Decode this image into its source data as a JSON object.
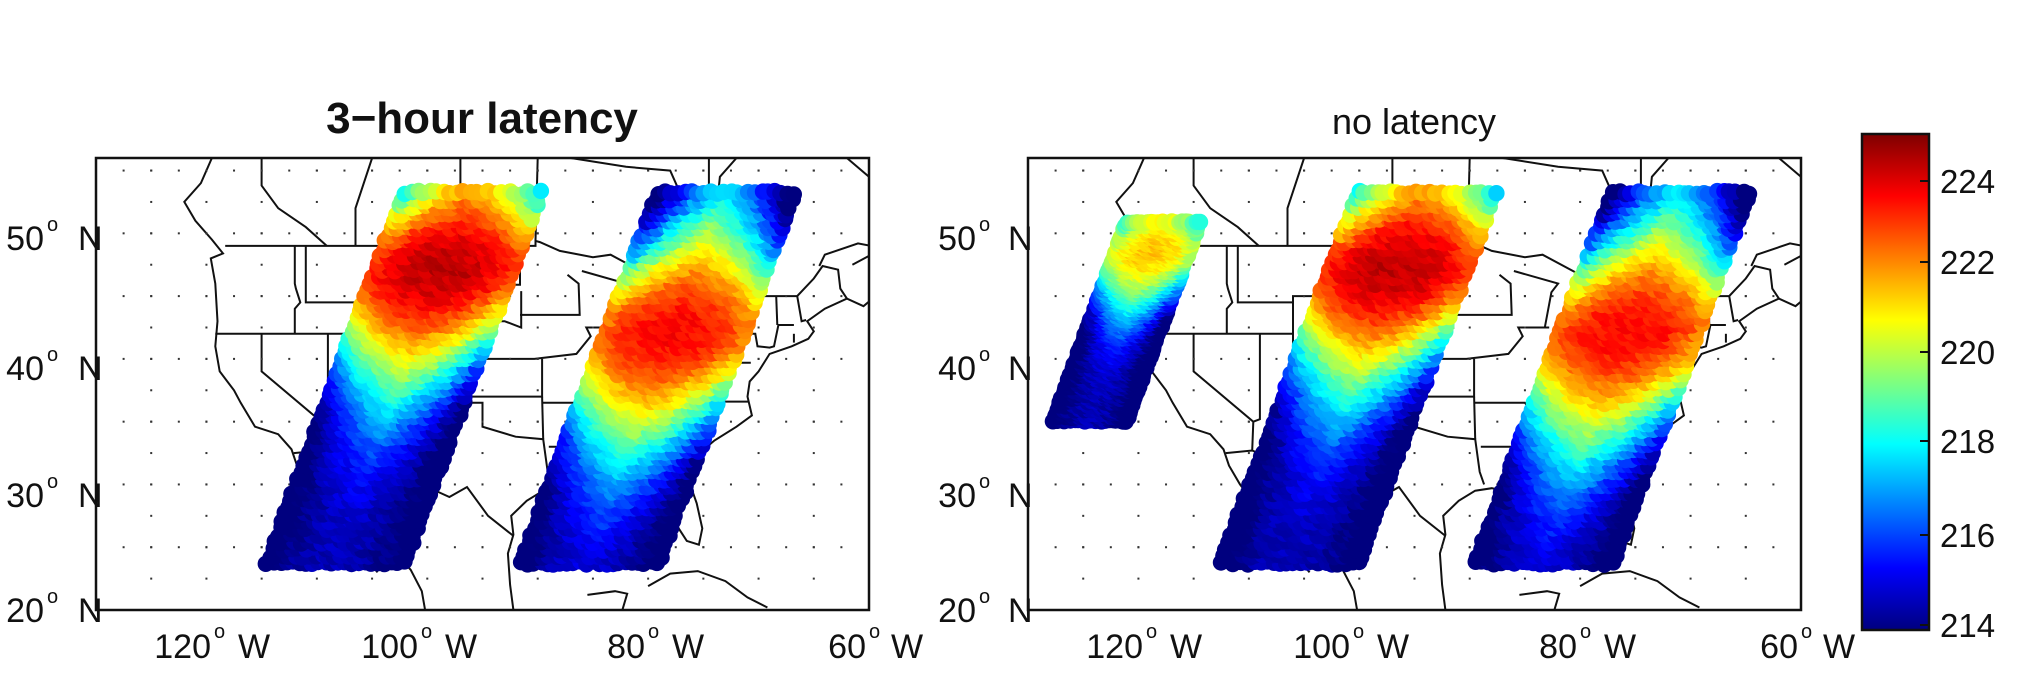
{
  "panels": [
    {
      "title": "3−hour latency",
      "y_ticks": [
        {
          "value": 50,
          "num": "50",
          "hemi": "N"
        },
        {
          "value": 40,
          "num": "40",
          "hemi": "N"
        },
        {
          "value": 30,
          "num": "30",
          "hemi": "N"
        },
        {
          "value": 20,
          "num": "20",
          "hemi": "N"
        }
      ],
      "x_ticks": [
        {
          "value": -120,
          "num": "120",
          "hemi": "W"
        },
        {
          "value": -100,
          "num": "100",
          "hemi": "W"
        },
        {
          "value": -80,
          "num": "80",
          "hemi": "W"
        },
        {
          "value": -60,
          "num": "60",
          "hemi": "W"
        }
      ]
    },
    {
      "title": "no latency",
      "y_ticks": [
        {
          "value": 50,
          "num": "50",
          "hemi": "N"
        },
        {
          "value": 40,
          "num": "40",
          "hemi": "N"
        },
        {
          "value": 30,
          "num": "30",
          "hemi": "N"
        },
        {
          "value": 20,
          "num": "20",
          "hemi": "N"
        }
      ],
      "x_ticks": [
        {
          "value": -120,
          "num": "120",
          "hemi": "W"
        },
        {
          "value": -100,
          "num": "100",
          "hemi": "W"
        },
        {
          "value": -80,
          "num": "80",
          "hemi": "W"
        },
        {
          "value": -60,
          "num": "60",
          "hemi": "W"
        }
      ]
    }
  ],
  "map": {
    "lon_range": [
      -135,
      -65
    ],
    "lat_range": [
      20,
      56
    ],
    "grid": "dotted",
    "grid_spacing_deg": 5,
    "basemap": "coastlines and political borders (US states, Canada, Mexico)"
  },
  "colorbar": {
    "range": [
      214,
      225
    ],
    "ticks": [
      "224",
      "222",
      "220",
      "218",
      "216",
      "214"
    ],
    "colormap": "jet",
    "colors": [
      "#00007f",
      "#0000ff",
      "#007fff",
      "#00ffff",
      "#7fff7f",
      "#ffff00",
      "#ff7f00",
      "#ff0000",
      "#7f0000"
    ]
  },
  "swaths": {
    "panel_1": [
      {
        "center_lon": -107,
        "warm_center_lat": 47.5,
        "warm_value": 224.3
      },
      {
        "center_lon": -84,
        "warm_center_lat": 42.5,
        "warm_value": 223.6
      }
    ],
    "panel_2": [
      {
        "center_lon": -125,
        "warm_center_lat": 49,
        "warm_value": 221.5
      },
      {
        "center_lon": -105,
        "warm_center_lat": 47.5,
        "warm_value": 224.3
      },
      {
        "center_lon": -82,
        "warm_center_lat": 42.5,
        "warm_value": 223.6
      }
    ]
  }
}
